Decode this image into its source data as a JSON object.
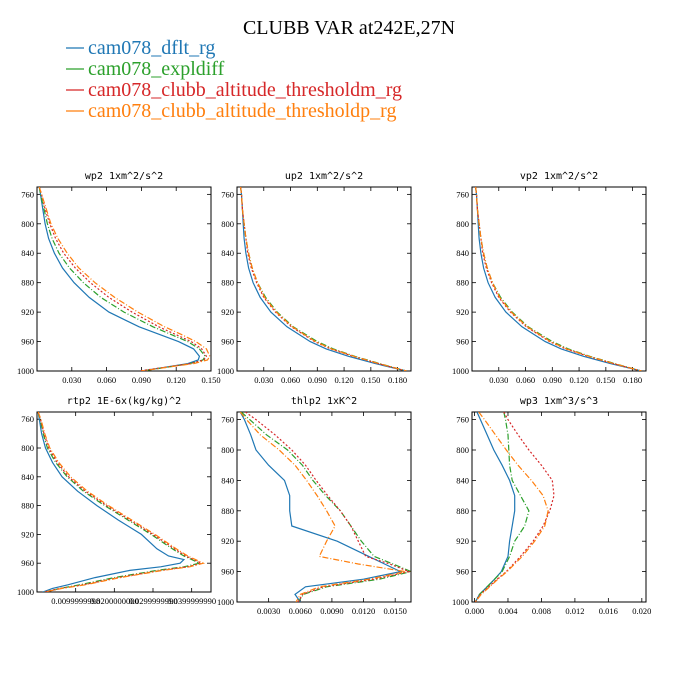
{
  "figure_title": "CLUBB VAR at242E,27N",
  "legend": [
    {
      "label": "cam078_dflt_rg",
      "color": "#1f77b4"
    },
    {
      "label": "cam078_expldiff",
      "color": "#2ca02c"
    },
    {
      "label": "cam078_clubb_altitude_thresholdm_rg",
      "color": "#d62728"
    },
    {
      "label": "cam078_clubb_altitude_thresholdp_rg",
      "color": "#ff7f0e"
    }
  ],
  "chart_data": [
    {
      "type": "line",
      "title": "wp2   1xm^2/s^2",
      "xlim": [
        0,
        0.15
      ],
      "ylim": [
        1000,
        750
      ],
      "xticks": [
        0.03,
        0.06,
        0.09,
        0.12,
        0.15
      ],
      "xtick_labels": [
        "0.030",
        "0.060",
        "0.090",
        "0.120",
        "0.150"
      ],
      "yticks": [
        760,
        800,
        840,
        880,
        920,
        960,
        1000
      ],
      "y": [
        750,
        760,
        780,
        800,
        820,
        840,
        860,
        880,
        900,
        920,
        940,
        950,
        960,
        970,
        980,
        985,
        990,
        995,
        1000
      ],
      "series": [
        {
          "name": "cam078_dflt_rg",
          "color": "#1f77b4",
          "dash": "",
          "values": [
            0.002,
            0.003,
            0.005,
            0.007,
            0.01,
            0.015,
            0.022,
            0.032,
            0.045,
            0.062,
            0.088,
            0.105,
            0.122,
            0.135,
            0.14,
            0.139,
            0.13,
            0.11,
            0.09
          ]
        },
        {
          "name": "cam078_expldiff",
          "color": "#2ca02c",
          "dash": "6,2,1,2",
          "values": [
            0.002,
            0.003,
            0.006,
            0.009,
            0.013,
            0.019,
            0.028,
            0.04,
            0.055,
            0.075,
            0.1,
            0.115,
            0.13,
            0.14,
            0.145,
            0.143,
            0.132,
            0.112,
            0.09
          ]
        },
        {
          "name": "cam078_clubb_altitude_thresholdm_rg",
          "color": "#d62728",
          "dash": "2,2",
          "values": [
            0.002,
            0.004,
            0.007,
            0.011,
            0.016,
            0.023,
            0.033,
            0.046,
            0.062,
            0.082,
            0.105,
            0.119,
            0.133,
            0.142,
            0.146,
            0.144,
            0.132,
            0.11,
            0.088
          ]
        },
        {
          "name": "cam078_clubb_altitude_thresholdp_rg",
          "color": "#ff7f0e",
          "dash": "6,2,1,2",
          "values": [
            0.002,
            0.004,
            0.008,
            0.012,
            0.018,
            0.026,
            0.036,
            0.05,
            0.067,
            0.087,
            0.11,
            0.124,
            0.137,
            0.146,
            0.149,
            0.147,
            0.135,
            0.112,
            0.09
          ]
        }
      ]
    },
    {
      "type": "line",
      "title": "up2   1xm^2/s^2",
      "xlim": [
        0,
        0.195
      ],
      "ylim": [
        1000,
        750
      ],
      "xticks": [
        0.03,
        0.06,
        0.09,
        0.12,
        0.15,
        0.18
      ],
      "xtick_labels": [
        "0.030",
        "0.060",
        "0.090",
        "0.120",
        "0.150",
        "0.180"
      ],
      "yticks": [
        760,
        800,
        840,
        880,
        920,
        960,
        1000
      ],
      "y": [
        750,
        760,
        780,
        800,
        820,
        840,
        860,
        880,
        900,
        920,
        940,
        960,
        970,
        980,
        990,
        1000
      ],
      "series": [
        {
          "name": "cam078_dflt_rg",
          "color": "#1f77b4",
          "dash": "",
          "values": [
            0.004,
            0.005,
            0.006,
            0.007,
            0.008,
            0.01,
            0.013,
            0.018,
            0.026,
            0.038,
            0.056,
            0.082,
            0.1,
            0.125,
            0.155,
            0.19
          ]
        },
        {
          "name": "cam078_expldiff",
          "color": "#2ca02c",
          "dash": "6,2,1,2",
          "values": [
            0.004,
            0.005,
            0.006,
            0.008,
            0.01,
            0.013,
            0.017,
            0.023,
            0.032,
            0.045,
            0.063,
            0.09,
            0.108,
            0.132,
            0.16,
            0.19
          ]
        },
        {
          "name": "cam078_clubb_altitude_thresholdm_rg",
          "color": "#d62728",
          "dash": "2,2",
          "values": [
            0.004,
            0.005,
            0.006,
            0.008,
            0.01,
            0.012,
            0.016,
            0.022,
            0.03,
            0.043,
            0.061,
            0.087,
            0.105,
            0.13,
            0.158,
            0.19
          ]
        },
        {
          "name": "cam078_clubb_altitude_thresholdp_rg",
          "color": "#ff7f0e",
          "dash": "6,2,1,2",
          "values": [
            0.004,
            0.005,
            0.006,
            0.008,
            0.01,
            0.013,
            0.017,
            0.023,
            0.031,
            0.044,
            0.062,
            0.088,
            0.106,
            0.131,
            0.159,
            0.19
          ]
        }
      ]
    },
    {
      "type": "line",
      "title": "vp2   1xm^2/s^2",
      "xlim": [
        0,
        0.195
      ],
      "ylim": [
        1000,
        750
      ],
      "xticks": [
        0.03,
        0.06,
        0.09,
        0.12,
        0.15,
        0.18
      ],
      "xtick_labels": [
        "0.030",
        "0.060",
        "0.090",
        "0.120",
        "0.150",
        "0.180"
      ],
      "yticks": [
        760,
        800,
        840,
        880,
        920,
        960,
        1000
      ],
      "y": [
        750,
        760,
        780,
        800,
        820,
        840,
        860,
        880,
        900,
        920,
        940,
        960,
        970,
        980,
        990,
        1000
      ],
      "series": [
        {
          "name": "cam078_dflt_rg",
          "color": "#1f77b4",
          "dash": "",
          "values": [
            0.004,
            0.005,
            0.006,
            0.007,
            0.008,
            0.01,
            0.013,
            0.018,
            0.026,
            0.038,
            0.056,
            0.082,
            0.1,
            0.125,
            0.155,
            0.19
          ]
        },
        {
          "name": "cam078_expldiff",
          "color": "#2ca02c",
          "dash": "6,2,1,2",
          "values": [
            0.004,
            0.005,
            0.006,
            0.008,
            0.01,
            0.013,
            0.017,
            0.023,
            0.032,
            0.045,
            0.063,
            0.09,
            0.108,
            0.132,
            0.16,
            0.19
          ]
        },
        {
          "name": "cam078_clubb_altitude_thresholdm_rg",
          "color": "#d62728",
          "dash": "2,2",
          "values": [
            0.004,
            0.005,
            0.006,
            0.008,
            0.01,
            0.012,
            0.016,
            0.022,
            0.03,
            0.043,
            0.061,
            0.087,
            0.105,
            0.13,
            0.158,
            0.19
          ]
        },
        {
          "name": "cam078_clubb_altitude_thresholdp_rg",
          "color": "#ff7f0e",
          "dash": "6,2,1,2",
          "values": [
            0.004,
            0.005,
            0.006,
            0.008,
            0.01,
            0.013,
            0.017,
            0.023,
            0.031,
            0.044,
            0.062,
            0.088,
            0.106,
            0.131,
            0.159,
            0.19
          ]
        }
      ]
    },
    {
      "type": "line",
      "title": "rtp2   1E-6x(kg/kg)^2",
      "xlim": [
        0,
        0.045
      ],
      "ylim": [
        1000,
        750
      ],
      "xticks": [
        0.01,
        0.02,
        0.03,
        0.04
      ],
      "xtick_labels": [
        "0.0099999998",
        "0.0200000000",
        "0.0299999990",
        "0.0399999990"
      ],
      "yticks": [
        760,
        800,
        840,
        880,
        920,
        960,
        1000
      ],
      "y": [
        750,
        760,
        780,
        800,
        820,
        840,
        860,
        880,
        900,
        920,
        940,
        950,
        955,
        960,
        965,
        970,
        980,
        990,
        995,
        1000
      ],
      "series": [
        {
          "name": "cam078_dflt_rg",
          "color": "#1f77b4",
          "dash": "",
          "values": [
            0.0003,
            0.0006,
            0.0012,
            0.0022,
            0.004,
            0.0065,
            0.0105,
            0.0155,
            0.021,
            0.027,
            0.031,
            0.034,
            0.038,
            0.037,
            0.032,
            0.024,
            0.015,
            0.008,
            0.004,
            0.0015
          ]
        },
        {
          "name": "cam078_expldiff",
          "color": "#2ca02c",
          "dash": "6,2,1,2",
          "values": [
            0.0003,
            0.0008,
            0.0016,
            0.0027,
            0.0048,
            0.0078,
            0.012,
            0.0175,
            0.0235,
            0.0295,
            0.035,
            0.038,
            0.04,
            0.042,
            0.038,
            0.031,
            0.02,
            0.011,
            0.006,
            0.002
          ]
        },
        {
          "name": "cam078_clubb_altitude_thresholdm_rg",
          "color": "#d62728",
          "dash": "2,2",
          "values": [
            0.0003,
            0.0009,
            0.0018,
            0.003,
            0.0052,
            0.0082,
            0.0125,
            0.018,
            0.024,
            0.03,
            0.0355,
            0.0385,
            0.0405,
            0.0425,
            0.039,
            0.032,
            0.021,
            0.012,
            0.006,
            0.002
          ]
        },
        {
          "name": "cam078_clubb_altitude_thresholdp_rg",
          "color": "#ff7f0e",
          "dash": "6,2,1,2",
          "values": [
            0.0003,
            0.001,
            0.002,
            0.0033,
            0.0056,
            0.0087,
            0.013,
            0.0185,
            0.0245,
            0.0305,
            0.036,
            0.039,
            0.041,
            0.043,
            0.0395,
            0.0325,
            0.0215,
            0.0125,
            0.0065,
            0.002
          ]
        }
      ]
    },
    {
      "type": "line",
      "title": "thlp2   1xK^2",
      "xlim": [
        0,
        0.0165
      ],
      "ylim": [
        1000,
        750
      ],
      "xticks": [
        0.003,
        0.006,
        0.009,
        0.012,
        0.015
      ],
      "xtick_labels": [
        "0.0030",
        "0.0060",
        "0.0090",
        "0.0120",
        "0.0150"
      ],
      "yticks": [
        760,
        800,
        840,
        880,
        920,
        960,
        1000
      ],
      "y": [
        750,
        760,
        780,
        800,
        820,
        840,
        860,
        880,
        900,
        920,
        940,
        950,
        960,
        970,
        980,
        990,
        1000
      ],
      "series": [
        {
          "name": "cam078_dflt_rg",
          "color": "#1f77b4",
          "dash": "",
          "values": [
            0.0003,
            0.0007,
            0.0013,
            0.0018,
            0.003,
            0.0045,
            0.005,
            0.005,
            0.0052,
            0.0095,
            0.0125,
            0.014,
            0.0155,
            0.012,
            0.0065,
            0.0055,
            0.006
          ]
        },
        {
          "name": "cam078_expldiff",
          "color": "#2ca02c",
          "dash": "6,2,1,2",
          "values": [
            0.0004,
            0.0012,
            0.0028,
            0.0048,
            0.0062,
            0.0072,
            0.0084,
            0.0098,
            0.0108,
            0.0118,
            0.013,
            0.0148,
            0.0165,
            0.0135,
            0.0085,
            0.0063,
            0.0058
          ]
        },
        {
          "name": "cam078_clubb_altitude_thresholdm_rg",
          "color": "#d62728",
          "dash": "2,2",
          "values": [
            0.0008,
            0.0018,
            0.0036,
            0.0052,
            0.0065,
            0.0075,
            0.0086,
            0.0098,
            0.0108,
            0.0115,
            0.0122,
            0.0145,
            0.0163,
            0.013,
            0.0082,
            0.0062,
            0.0058
          ]
        },
        {
          "name": "cam078_clubb_altitude_thresholdp_rg",
          "color": "#ff7f0e",
          "dash": "6,2,1,2",
          "values": [
            0.0003,
            0.0009,
            0.0022,
            0.004,
            0.0055,
            0.0066,
            0.0076,
            0.0085,
            0.0093,
            0.0085,
            0.0078,
            0.0115,
            0.016,
            0.0125,
            0.0078,
            0.006,
            0.0056
          ]
        }
      ]
    },
    {
      "type": "line",
      "title": "wp3   1xm^3/s^3",
      "xlim": [
        -0.0003,
        0.0205
      ],
      "ylim": [
        1000,
        750
      ],
      "xticks": [
        0.0,
        0.004,
        0.008,
        0.012,
        0.016,
        0.02
      ],
      "xtick_labels": [
        "0.000",
        "0.004",
        "0.008",
        "0.012",
        "0.016",
        "0.020"
      ],
      "yticks": [
        760,
        800,
        840,
        880,
        920,
        960,
        1000
      ],
      "y": [
        750,
        760,
        780,
        800,
        820,
        840,
        860,
        880,
        900,
        920,
        940,
        960,
        970,
        980,
        990,
        1000
      ],
      "series": [
        {
          "name": "cam078_dflt_rg",
          "color": "#1f77b4",
          "dash": "",
          "values": [
            0.0003,
            0.0007,
            0.0015,
            0.0023,
            0.0033,
            0.0042,
            0.0048,
            0.0048,
            0.0045,
            0.0042,
            0.004,
            0.0032,
            0.0024,
            0.0015,
            0.0006,
            0.0001
          ]
        },
        {
          "name": "cam078_expldiff",
          "color": "#2ca02c",
          "dash": "6,2,1,2",
          "values": [
            0.0035,
            0.0037,
            0.004,
            0.0041,
            0.0042,
            0.0045,
            0.0055,
            0.0065,
            0.006,
            0.0048,
            0.0042,
            0.0033,
            0.0024,
            0.0015,
            0.0006,
            0.0001
          ]
        },
        {
          "name": "cam078_clubb_altitude_thresholdm_rg",
          "color": "#d62728",
          "dash": "2,2",
          "values": [
            0.0035,
            0.004,
            0.0052,
            0.0065,
            0.008,
            0.0093,
            0.0095,
            0.009,
            0.0082,
            0.007,
            0.0055,
            0.0038,
            0.0027,
            0.0017,
            0.0007,
            0.0001
          ]
        },
        {
          "name": "cam078_clubb_altitude_thresholdp_rg",
          "color": "#ff7f0e",
          "dash": "6,2,1,2",
          "values": [
            0.0005,
            0.0012,
            0.0025,
            0.0038,
            0.0052,
            0.0068,
            0.0082,
            0.0088,
            0.0084,
            0.0072,
            0.0057,
            0.0039,
            0.0028,
            0.0018,
            0.0008,
            0.0001
          ]
        }
      ]
    }
  ]
}
